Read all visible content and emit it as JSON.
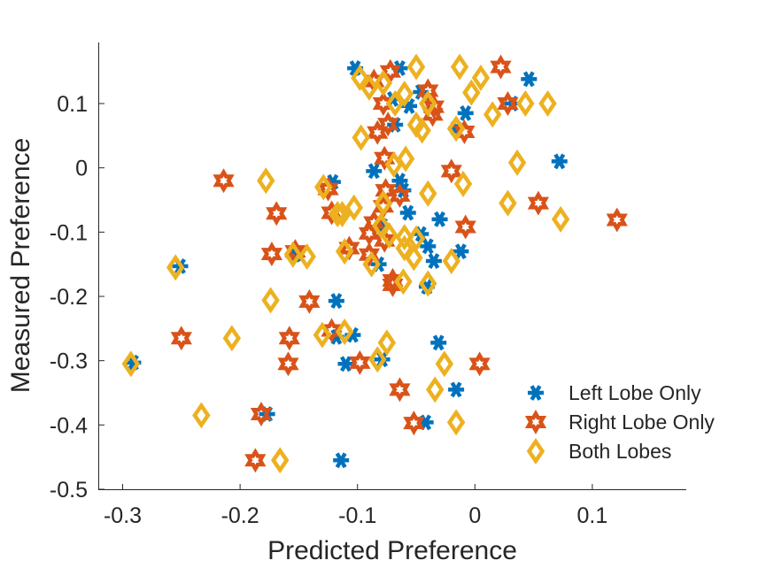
{
  "colors": {
    "left": "#0072BD",
    "right": "#D95319",
    "both": "#EDB120",
    "axis": "#262626"
  },
  "chart_data": {
    "type": "scatter",
    "title": "",
    "xlabel": "Predicted Preference",
    "ylabel": "Measured Preference",
    "xlim": [
      -0.32,
      0.18
    ],
    "ylim": [
      -0.5,
      0.195
    ],
    "xticks": [
      -0.3,
      -0.2,
      -0.1,
      0,
      0.1
    ],
    "xtick_labels": [
      "-0.3",
      "-0.2",
      "-0.1",
      "0",
      "0.1"
    ],
    "yticks": [
      -0.5,
      -0.4,
      -0.3,
      -0.2,
      -0.1,
      0,
      0.1
    ],
    "ytick_labels": [
      "-0.5",
      "-0.4",
      "-0.3",
      "-0.2",
      "-0.1",
      "0",
      "0.1"
    ],
    "grid": false,
    "legend_position": "bottom-right",
    "series": [
      {
        "name": "Left Lobe Only",
        "marker": "asterisk",
        "points": [
          [
            -0.102,
            0.155
          ],
          [
            -0.064,
            0.155
          ],
          [
            0.046,
            0.138
          ],
          [
            -0.046,
            0.118
          ],
          [
            -0.07,
            0.107
          ],
          [
            0.032,
            0.1
          ],
          [
            -0.056,
            0.096
          ],
          [
            -0.008,
            0.085
          ],
          [
            -0.016,
            0.061
          ],
          [
            -0.068,
            0.067
          ],
          [
            0.072,
            0.01
          ],
          [
            -0.086,
            -0.005
          ],
          [
            -0.064,
            -0.02
          ],
          [
            -0.061,
            -0.035
          ],
          [
            -0.121,
            -0.022
          ],
          [
            -0.057,
            -0.07
          ],
          [
            -0.03,
            -0.08
          ],
          [
            -0.079,
            -0.09
          ],
          [
            -0.012,
            -0.13
          ],
          [
            -0.046,
            -0.103
          ],
          [
            -0.04,
            -0.122
          ],
          [
            -0.035,
            -0.145
          ],
          [
            -0.082,
            -0.15
          ],
          [
            -0.153,
            -0.135
          ],
          [
            -0.251,
            -0.153
          ],
          [
            -0.041,
            -0.185
          ],
          [
            -0.118,
            -0.207
          ],
          [
            -0.104,
            -0.26
          ],
          [
            -0.118,
            -0.263
          ],
          [
            -0.031,
            -0.272
          ],
          [
            -0.11,
            -0.305
          ],
          [
            -0.079,
            -0.298
          ],
          [
            -0.016,
            -0.345
          ],
          [
            -0.177,
            -0.383
          ],
          [
            -0.042,
            -0.396
          ],
          [
            -0.114,
            -0.455
          ],
          [
            -0.291,
            -0.303
          ]
        ]
      },
      {
        "name": "Right Lobe Only",
        "marker": "hexagram",
        "points": [
          [
            0.022,
            0.157
          ],
          [
            -0.072,
            0.15
          ],
          [
            -0.086,
            0.135
          ],
          [
            -0.04,
            0.12
          ],
          [
            -0.078,
            0.1
          ],
          [
            -0.035,
            0.095
          ],
          [
            -0.036,
            0.083
          ],
          [
            0.028,
            0.1
          ],
          [
            -0.083,
            0.055
          ],
          [
            -0.074,
            0.068
          ],
          [
            -0.009,
            0.056
          ],
          [
            -0.077,
            0.015
          ],
          [
            -0.02,
            -0.005
          ],
          [
            -0.214,
            -0.02
          ],
          [
            -0.125,
            -0.033
          ],
          [
            -0.064,
            -0.043
          ],
          [
            -0.169,
            -0.071
          ],
          [
            -0.122,
            -0.07
          ],
          [
            -0.078,
            -0.06
          ],
          [
            -0.076,
            -0.035
          ],
          [
            -0.086,
            -0.085
          ],
          [
            0.054,
            -0.055
          ],
          [
            0.121,
            -0.081
          ],
          [
            -0.008,
            -0.092
          ],
          [
            -0.09,
            -0.102
          ],
          [
            -0.077,
            -0.113
          ],
          [
            -0.107,
            -0.125
          ],
          [
            -0.09,
            -0.135
          ],
          [
            -0.153,
            -0.13
          ],
          [
            -0.173,
            -0.134
          ],
          [
            -0.07,
            -0.175
          ],
          [
            -0.07,
            -0.182
          ],
          [
            -0.141,
            -0.208
          ],
          [
            -0.25,
            -0.265
          ],
          [
            -0.158,
            -0.265
          ],
          [
            -0.122,
            -0.253
          ],
          [
            -0.098,
            -0.303
          ],
          [
            -0.159,
            -0.305
          ],
          [
            -0.182,
            -0.383
          ],
          [
            -0.064,
            -0.345
          ],
          [
            -0.052,
            -0.397
          ],
          [
            0.004,
            -0.305
          ],
          [
            -0.187,
            -0.455
          ]
        ]
      },
      {
        "name": "Both Lobes",
        "marker": "diamond",
        "points": [
          [
            -0.05,
            0.157
          ],
          [
            -0.013,
            0.157
          ],
          [
            -0.098,
            0.14
          ],
          [
            -0.078,
            0.132
          ],
          [
            0.005,
            0.14
          ],
          [
            -0.06,
            0.115
          ],
          [
            -0.09,
            0.125
          ],
          [
            -0.068,
            0.1
          ],
          [
            -0.04,
            0.1
          ],
          [
            -0.003,
            0.117
          ],
          [
            0.043,
            0.1
          ],
          [
            0.062,
            0.1
          ],
          [
            0.015,
            0.083
          ],
          [
            -0.05,
            0.067
          ],
          [
            -0.097,
            0.047
          ],
          [
            -0.045,
            0.058
          ],
          [
            -0.016,
            0.061
          ],
          [
            -0.069,
            0.005
          ],
          [
            -0.059,
            0.014
          ],
          [
            0.036,
            0.008
          ],
          [
            -0.178,
            -0.02
          ],
          [
            -0.129,
            -0.03
          ],
          [
            -0.04,
            -0.04
          ],
          [
            -0.01,
            -0.025
          ],
          [
            -0.078,
            -0.055
          ],
          [
            0.028,
            -0.055
          ],
          [
            -0.103,
            -0.062
          ],
          [
            -0.113,
            -0.072
          ],
          [
            -0.117,
            -0.072
          ],
          [
            0.073,
            -0.08
          ],
          [
            -0.08,
            -0.09
          ],
          [
            -0.06,
            -0.108
          ],
          [
            -0.073,
            -0.105
          ],
          [
            -0.05,
            -0.11
          ],
          [
            -0.06,
            -0.125
          ],
          [
            -0.111,
            -0.13
          ],
          [
            -0.052,
            -0.14
          ],
          [
            -0.02,
            -0.145
          ],
          [
            -0.088,
            -0.15
          ],
          [
            -0.155,
            -0.135
          ],
          [
            -0.143,
            -0.138
          ],
          [
            -0.255,
            -0.155
          ],
          [
            -0.061,
            -0.177
          ],
          [
            -0.04,
            -0.18
          ],
          [
            -0.174,
            -0.206
          ],
          [
            -0.13,
            -0.26
          ],
          [
            -0.111,
            -0.255
          ],
          [
            -0.207,
            -0.265
          ],
          [
            -0.075,
            -0.272
          ],
          [
            -0.026,
            -0.305
          ],
          [
            -0.083,
            -0.298
          ],
          [
            -0.034,
            -0.345
          ],
          [
            -0.233,
            -0.385
          ],
          [
            -0.016,
            -0.396
          ],
          [
            -0.166,
            -0.455
          ],
          [
            -0.293,
            -0.305
          ]
        ]
      }
    ]
  }
}
